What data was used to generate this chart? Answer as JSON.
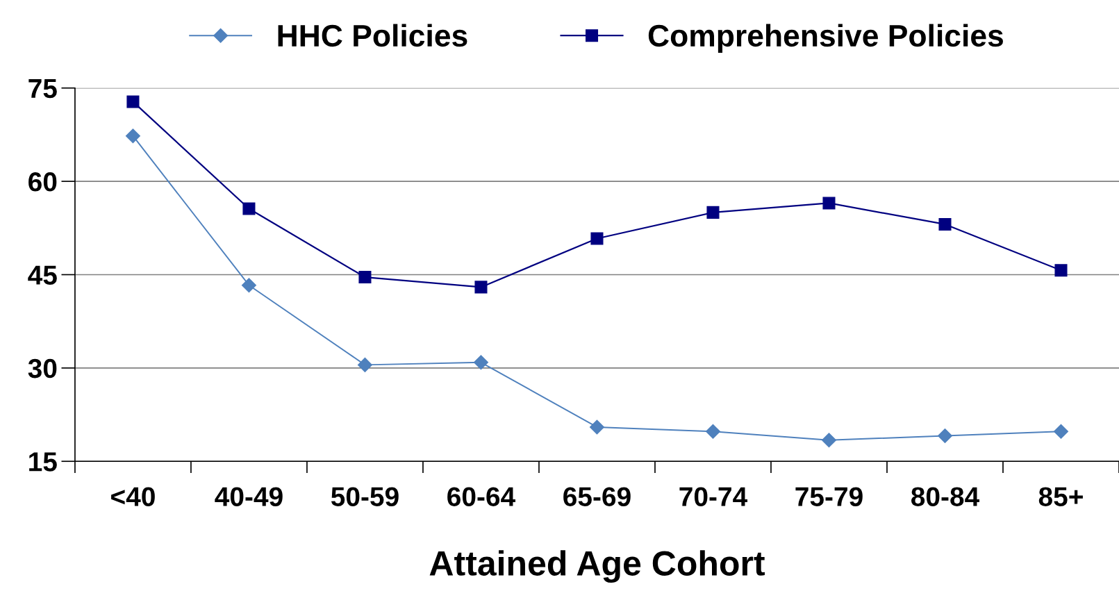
{
  "chart_data": {
    "type": "line",
    "categories": [
      "<40",
      "40-49",
      "50-59",
      "60-64",
      "65-69",
      "70-74",
      "75-79",
      "80-84",
      "85+"
    ],
    "series": [
      {
        "name": "HHC Policies",
        "color": "#4f81bd",
        "marker": "diamond",
        "values": [
          67.3,
          43.3,
          30.5,
          30.9,
          20.5,
          19.8,
          18.4,
          19.1,
          19.8
        ]
      },
      {
        "name": "Comprehensive Policies",
        "color": "#000080",
        "marker": "square",
        "values": [
          72.8,
          55.6,
          44.6,
          43.0,
          50.8,
          55.0,
          56.5,
          53.1,
          45.7
        ]
      }
    ],
    "xlabel": "Attained Age Cohort",
    "ylim": [
      15,
      75
    ],
    "yticks": [
      15,
      30,
      45,
      60,
      75
    ],
    "grid": "y",
    "legend": "top",
    "line_style": "solid"
  }
}
